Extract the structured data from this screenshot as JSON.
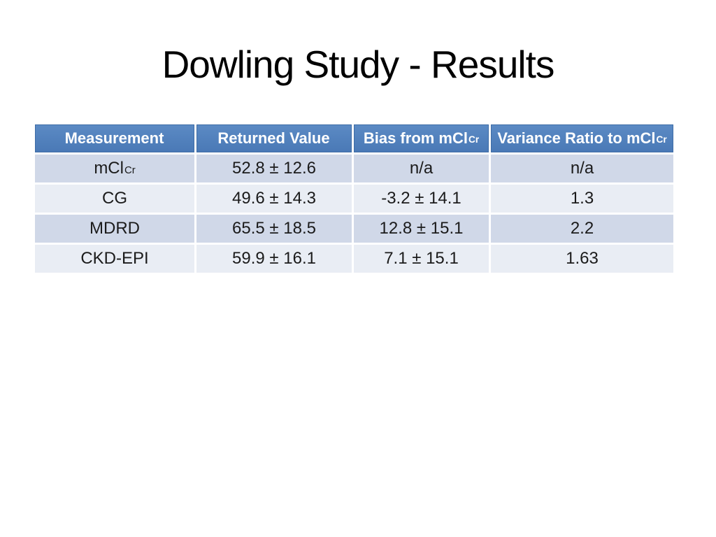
{
  "slide": {
    "title": "Dowling Study - Results",
    "background_color": "#FFFFFF",
    "title_color": "#000000"
  },
  "colors": {
    "header_bg": "#4F81BD",
    "header_border": "#3E6CA6",
    "header_text": "#FFFFFF",
    "row_odd_bg": "#D0D8E8",
    "row_even_bg": "#E9EDF4",
    "body_text": "#1B1B1B"
  },
  "table": {
    "headers": [
      {
        "text": "Measurement"
      },
      {
        "text": "Returned Value"
      },
      {
        "text": "Bias from mCl",
        "sub": "Cr"
      },
      {
        "text": "Variance Ratio to mCl",
        "sub": "Cr"
      }
    ],
    "rows": [
      {
        "cells": [
          {
            "text": "mCl",
            "sub": "Cr"
          },
          {
            "text": "52.8 ± 12.6"
          },
          {
            "text": "n/a"
          },
          {
            "text": "n/a"
          }
        ]
      },
      {
        "cells": [
          {
            "text": "CG"
          },
          {
            "text": "49.6 ± 14.3"
          },
          {
            "text": "-3.2 ± 14.1"
          },
          {
            "text": "1.3"
          }
        ]
      },
      {
        "cells": [
          {
            "text": "MDRD"
          },
          {
            "text": "65.5 ± 18.5"
          },
          {
            "text": "12.8 ± 15.1"
          },
          {
            "text": "2.2"
          }
        ]
      },
      {
        "cells": [
          {
            "text": "CKD-EPI"
          },
          {
            "text": "59.9 ± 16.1"
          },
          {
            "text": "7.1 ± 15.1"
          },
          {
            "text": "1.63"
          }
        ]
      }
    ]
  }
}
